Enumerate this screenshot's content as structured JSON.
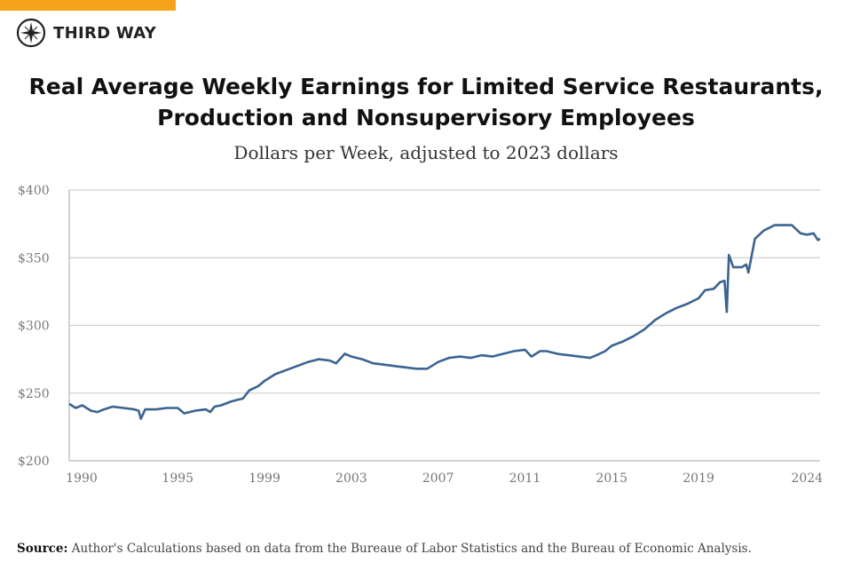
{
  "brand": {
    "name": "THIRD WAY",
    "accent": "#f7a21b"
  },
  "chart_data": {
    "type": "line",
    "title": "Real Average Weekly Earnings for Limited Service Restaurants, Production and Nonsupervisory Employees",
    "subtitle": "Dollars per Week, adjusted to 2023 dollars",
    "xlabel": "",
    "ylabel": "",
    "ylim": [
      200,
      400
    ],
    "xlim": [
      1990,
      2024.6
    ],
    "yticks": [
      {
        "v": 200,
        "label": "$200"
      },
      {
        "v": 250,
        "label": "$250"
      },
      {
        "v": 300,
        "label": "$300"
      },
      {
        "v": 350,
        "label": "$350"
      },
      {
        "v": 400,
        "label": "$400"
      }
    ],
    "xticks": [
      {
        "v": 1990,
        "label": "1990"
      },
      {
        "v": 1995,
        "label": "1995"
      },
      {
        "v": 1999,
        "label": "1999"
      },
      {
        "v": 2003,
        "label": "2003"
      },
      {
        "v": 2007,
        "label": "2007"
      },
      {
        "v": 2011,
        "label": "2011"
      },
      {
        "v": 2015,
        "label": "2015"
      },
      {
        "v": 2019,
        "label": "2019"
      },
      {
        "v": 2024,
        "label": "2024"
      }
    ],
    "grid": true,
    "color": "#3b6491",
    "series": [
      {
        "x": [
          1990.0,
          1990.3,
          1990.6,
          1991.0,
          1991.3,
          1991.6,
          1992.0,
          1992.5,
          1993.0,
          1993.2,
          1993.3,
          1993.5,
          1994.0,
          1994.5,
          1995.0,
          1995.3,
          1995.8,
          1996.3,
          1996.5,
          1996.7,
          1997.0,
          1997.5,
          1998.0,
          1998.3,
          1998.7,
          1999.0,
          1999.5,
          2000.0,
          2000.5,
          2001.0,
          2001.5,
          2002.0,
          2002.3,
          2002.7,
          2003.0,
          2003.5,
          2004.0,
          2004.5,
          2005.0,
          2005.5,
          2006.0,
          2006.5,
          2007.0,
          2007.5,
          2008.0,
          2008.5,
          2009.0,
          2009.5,
          2010.0,
          2010.5,
          2011.0,
          2011.3,
          2011.7,
          2012.0,
          2012.5,
          2013.0,
          2013.5,
          2014.0,
          2014.3,
          2014.7,
          2015.0,
          2015.5,
          2016.0,
          2016.5,
          2017.0,
          2017.5,
          2018.0,
          2018.5,
          2019.0,
          2019.3,
          2019.7,
          2020.0,
          2020.2,
          2020.3,
          2020.4,
          2020.6,
          2021.0,
          2021.2,
          2021.3,
          2021.6,
          2022.0,
          2022.5,
          2023.0,
          2023.3,
          2023.7,
          2024.0,
          2024.3,
          2024.5,
          2024.6
        ],
        "y": [
          242,
          239,
          241,
          237,
          236,
          238,
          240,
          239,
          238,
          237,
          231,
          238,
          238,
          239,
          239,
          235,
          237,
          238,
          236,
          240,
          241,
          244,
          246,
          252,
          255,
          259,
          264,
          267,
          270,
          273,
          275,
          274,
          272,
          279,
          277,
          275,
          272,
          271,
          270,
          269,
          268,
          268,
          273,
          276,
          277,
          276,
          278,
          277,
          279,
          281,
          282,
          277,
          281,
          281,
          279,
          278,
          277,
          276,
          278,
          281,
          285,
          288,
          292,
          297,
          304,
          309,
          313,
          316,
          320,
          326,
          327,
          332,
          333,
          310,
          352,
          343,
          343,
          345,
          339,
          364,
          370,
          374,
          374,
          374,
          368,
          367,
          368,
          363,
          364
        ]
      }
    ]
  },
  "source": {
    "label": "Source:",
    "text": " Author's Calculations based on data from the Bureaue of Labor Statistics and the Bureau of Economic Analysis."
  }
}
